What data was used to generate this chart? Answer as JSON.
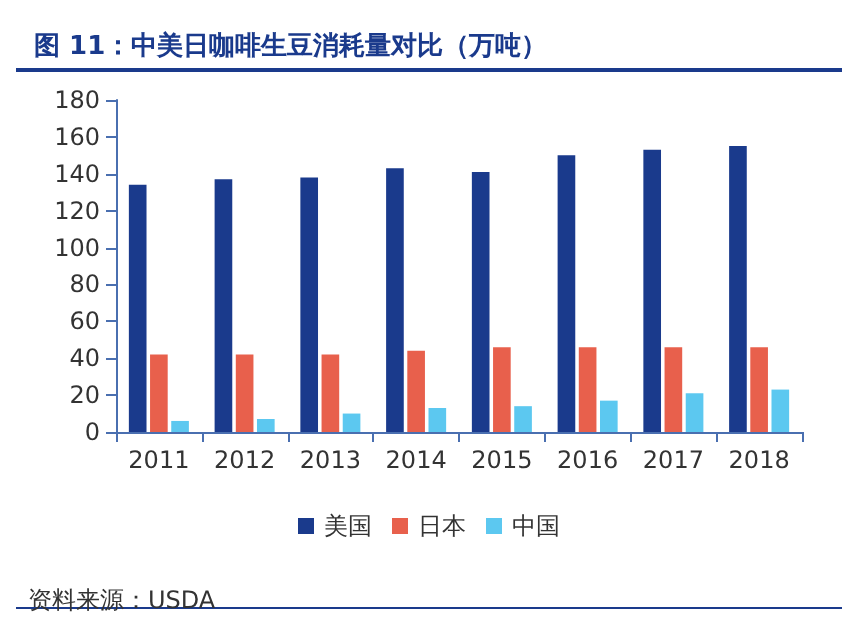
{
  "chart_data": {
    "type": "bar",
    "title": "图 11：中美日咖啡生豆消耗量对比（万吨）",
    "categories": [
      "2011",
      "2012",
      "2013",
      "2014",
      "2015",
      "2016",
      "2017",
      "2018"
    ],
    "series": [
      {
        "name": "美国",
        "color": "#1a3a8c",
        "values": [
          134,
          137,
          138,
          143,
          141,
          150,
          153,
          155
        ]
      },
      {
        "name": "日本",
        "color": "#e8604c",
        "values": [
          42,
          42,
          42,
          44,
          46,
          46,
          46,
          46
        ]
      },
      {
        "name": "中国",
        "color": "#5cc8f0",
        "values": [
          6,
          7,
          10,
          13,
          14,
          17,
          21,
          23
        ]
      }
    ],
    "ylim": [
      0,
      180
    ],
    "yticks": [
      0,
      20,
      40,
      60,
      80,
      100,
      120,
      140,
      160,
      180
    ],
    "grid": false,
    "legend": "bottom",
    "annotations": [
      "资料来源：USDA"
    ]
  }
}
